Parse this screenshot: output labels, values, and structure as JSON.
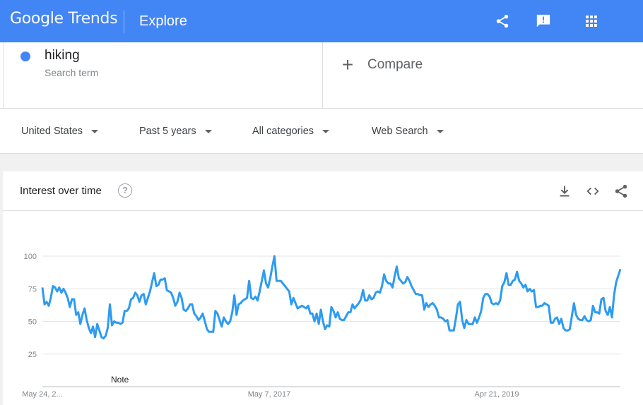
{
  "header": {
    "logo_google": "Google",
    "logo_trends": "Trends",
    "page": "Explore"
  },
  "search": {
    "term": "hiking",
    "term_type": "Search term",
    "term_color": "#4285f4",
    "compare_label": "Compare"
  },
  "filters": {
    "region": "United States",
    "time": "Past 5 years",
    "category": "All categories",
    "property": "Web Search"
  },
  "card": {
    "title": "Interest over time",
    "note_label": "Note"
  },
  "chart_data": {
    "type": "line",
    "title": "Interest over time",
    "ylim": [
      0,
      100
    ],
    "yticks": [
      25,
      50,
      75,
      100
    ],
    "xtick_labels": [
      "May 24, 2...",
      "May 7, 2017",
      "Apr 21, 2019"
    ],
    "grid": true,
    "series": [
      {
        "name": "hiking",
        "color": "#2d9bf0",
        "values": [
          76,
          63,
          65,
          62,
          68,
          77,
          76,
          73,
          76,
          72,
          75,
          72,
          68,
          61,
          67,
          67,
          55,
          57,
          48,
          55,
          60,
          51,
          45,
          41,
          46,
          38,
          48,
          43,
          38,
          37,
          39,
          45,
          63,
          47,
          50,
          49,
          49,
          48,
          49,
          58,
          58,
          60,
          67,
          68,
          72,
          70,
          65,
          70,
          71,
          63,
          68,
          73,
          80,
          87,
          77,
          78,
          82,
          82,
          83,
          74,
          73,
          72,
          68,
          62,
          65,
          72,
          68,
          59,
          58,
          60,
          63,
          63,
          56,
          54,
          51,
          53,
          56,
          50,
          44,
          42,
          42,
          42,
          58,
          56,
          51,
          46,
          53,
          50,
          48,
          50,
          57,
          70,
          55,
          63,
          64,
          66,
          67,
          68,
          81,
          68,
          67,
          69,
          66,
          73,
          81,
          89,
          79,
          76,
          83,
          92,
          100,
          81,
          81,
          81,
          79,
          77,
          75,
          73,
          63,
          68,
          64,
          60,
          61,
          62,
          61,
          60,
          62,
          56,
          56,
          50,
          56,
          48,
          59,
          50,
          44,
          47,
          46,
          61,
          58,
          53,
          57,
          52,
          51,
          51,
          54,
          57,
          57,
          63,
          60,
          62,
          64,
          67,
          74,
          66,
          66,
          70,
          67,
          68,
          72,
          73,
          72,
          77,
          86,
          81,
          79,
          79,
          76,
          85,
          92,
          83,
          81,
          79,
          80,
          84,
          81,
          77,
          74,
          71,
          71,
          70,
          70,
          59,
          64,
          61,
          63,
          64,
          62,
          59,
          53,
          53,
          52,
          50,
          51,
          43,
          43,
          43,
          52,
          63,
          65,
          51,
          45,
          51,
          48,
          48,
          48,
          53,
          49,
          53,
          58,
          68,
          71,
          71,
          69,
          64,
          63,
          64,
          63,
          66,
          77,
          80,
          87,
          78,
          78,
          81,
          82,
          88,
          81,
          79,
          76,
          78,
          73,
          75,
          73,
          74,
          61,
          61,
          62,
          62,
          64,
          63,
          62,
          49,
          49,
          52,
          53,
          48,
          52,
          45,
          43,
          43,
          44,
          54,
          64,
          55,
          52,
          51,
          51,
          54,
          51,
          50,
          51,
          62,
          57,
          57,
          56,
          67,
          68,
          58,
          55,
          61,
          53,
          70,
          80,
          85,
          90
        ]
      }
    ]
  }
}
